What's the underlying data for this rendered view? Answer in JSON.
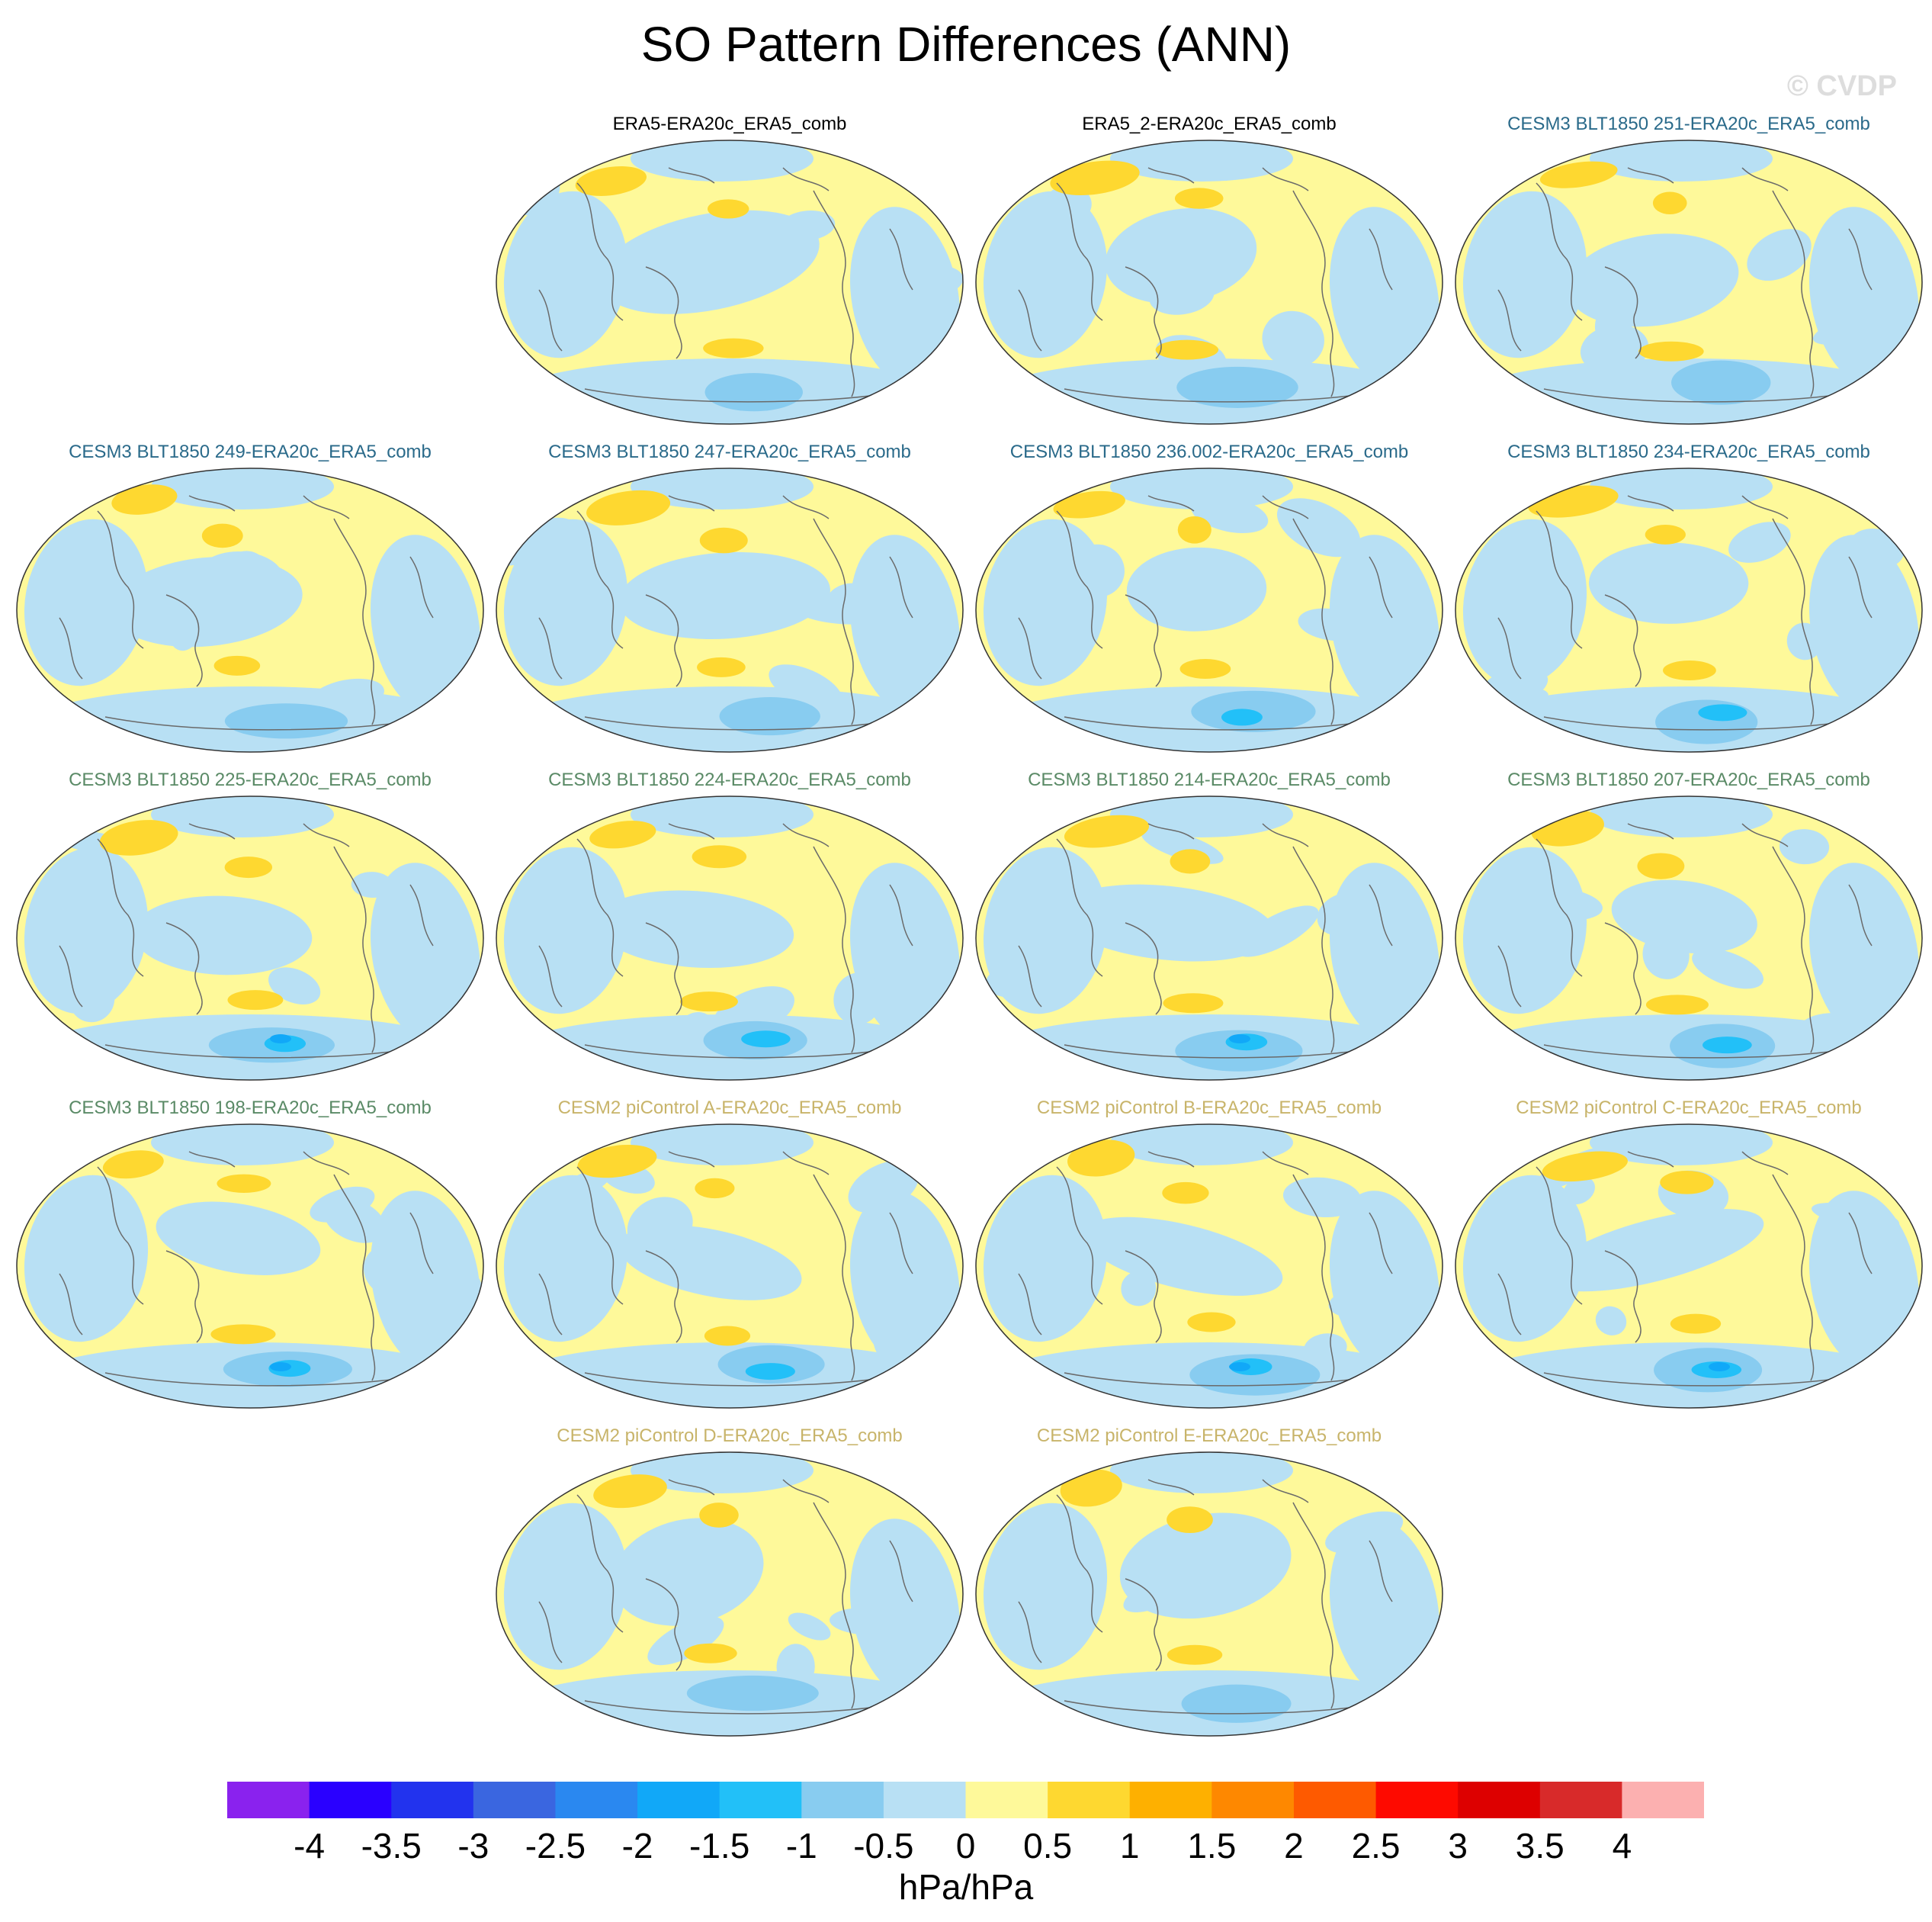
{
  "title": "SO Pattern Differences (ANN)",
  "watermark": "© CVDP",
  "panels": [
    {
      "title": "ERA5-ERA20c_ERA5_comb",
      "title_color": "#000000",
      "seed": 1
    },
    {
      "title": "ERA5_2-ERA20c_ERA5_comb",
      "title_color": "#000000",
      "seed": 2
    },
    {
      "title": "CESM3 BLT1850 251-ERA20c_ERA5_comb",
      "title_color": "#2a6a8a",
      "seed": 3
    },
    {
      "title": "CESM3 BLT1850 249-ERA20c_ERA5_comb",
      "title_color": "#2a6a8a",
      "seed": 4
    },
    {
      "title": "CESM3 BLT1850 247-ERA20c_ERA5_comb",
      "title_color": "#2a6a8a",
      "seed": 5
    },
    {
      "title": "CESM3 BLT1850 236.002-ERA20c_ERA5_comb",
      "title_color": "#2a6a8a",
      "seed": 6
    },
    {
      "title": "CESM3 BLT1850 234-ERA20c_ERA5_comb",
      "title_color": "#2a6a8a",
      "seed": 7
    },
    {
      "title": "CESM3 BLT1850 225-ERA20c_ERA5_comb",
      "title_color": "#5a8a66",
      "seed": 8
    },
    {
      "title": "CESM3 BLT1850 224-ERA20c_ERA5_comb",
      "title_color": "#5a8a66",
      "seed": 9
    },
    {
      "title": "CESM3 BLT1850 214-ERA20c_ERA5_comb",
      "title_color": "#5a8a66",
      "seed": 10
    },
    {
      "title": "CESM3 BLT1850 207-ERA20c_ERA5_comb",
      "title_color": "#5a8a66",
      "seed": 11
    },
    {
      "title": "CESM3 BLT1850 198-ERA20c_ERA5_comb",
      "title_color": "#5a8a66",
      "seed": 12
    },
    {
      "title": "CESM2 piControl A-ERA20c_ERA5_comb",
      "title_color": "#c8b46a",
      "seed": 13
    },
    {
      "title": "CESM2 piControl B-ERA20c_ERA5_comb",
      "title_color": "#c8b46a",
      "seed": 14
    },
    {
      "title": "CESM2 piControl C-ERA20c_ERA5_comb",
      "title_color": "#c8b46a",
      "seed": 15
    },
    {
      "title": "CESM2 piControl D-ERA20c_ERA5_comb",
      "title_color": "#c8b46a",
      "seed": 16
    },
    {
      "title": "CESM2 piControl E-ERA20c_ERA5_comb",
      "title_color": "#c8b46a",
      "seed": 17
    }
  ],
  "colorbar": {
    "colors": [
      "#8a22ee",
      "#2a00ff",
      "#2233ee",
      "#3a66e0",
      "#2a88f0",
      "#11a8f8",
      "#22c0f8",
      "#88ccf0",
      "#b8e0f4",
      "#fef99a",
      "#fed830",
      "#feb000",
      "#fe8800",
      "#fe5a00",
      "#fe0a00",
      "#dd0000",
      "#d82a2a",
      "#fcb0b0"
    ],
    "labels": [
      "-4",
      "-3.5",
      "-3",
      "-2.5",
      "-2",
      "-1.5",
      "-1",
      "-0.5",
      "0",
      "0.5",
      "1",
      "1.5",
      "2",
      "2.5",
      "3",
      "3.5",
      "4"
    ],
    "units": "hPa/hPa"
  }
}
